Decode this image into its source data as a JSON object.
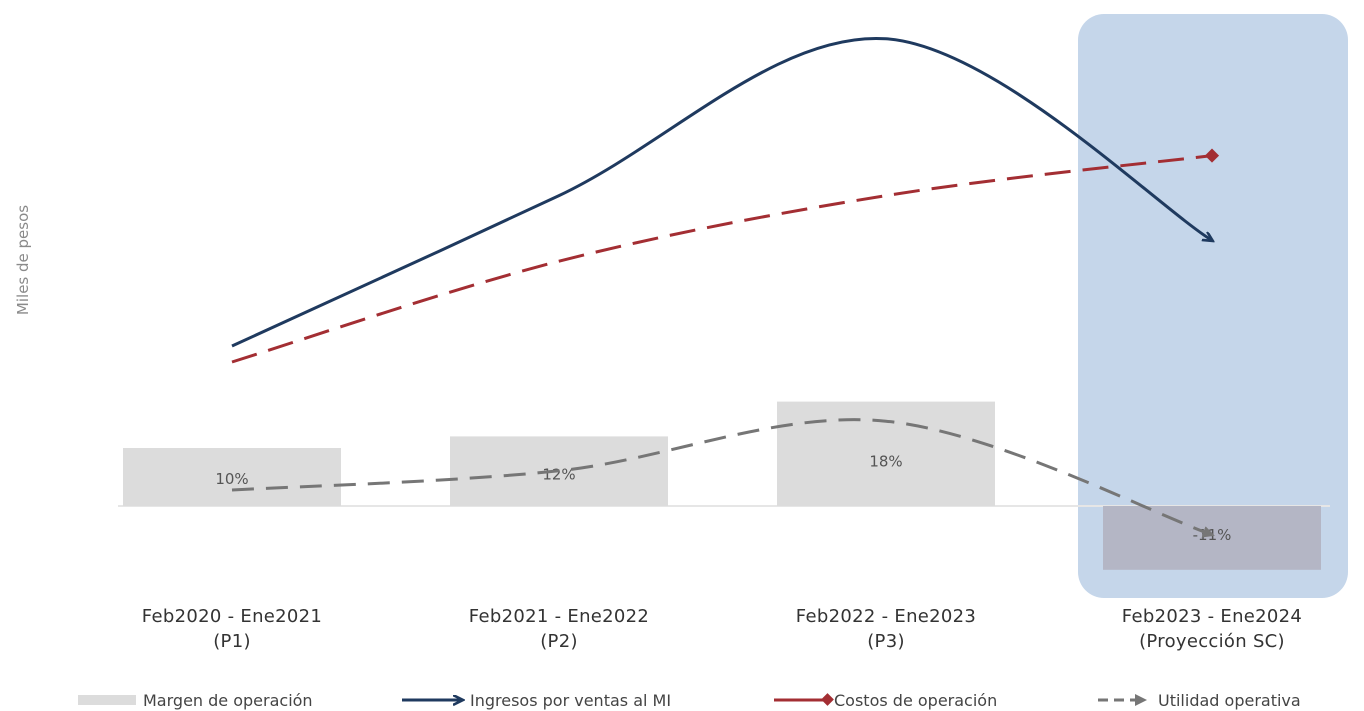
{
  "chart_data": {
    "type": "bar-line",
    "ylabel": "Miles de pesos",
    "categories": [
      [
        "Feb2020 - Ene2021",
        "(P1)"
      ],
      [
        "Feb2021 - Ene2022",
        "(P2)"
      ],
      [
        "Feb2022 - Ene2023",
        "(P3)"
      ],
      [
        "Feb2023 - Ene2024",
        "(Proyección SC)"
      ]
    ],
    "highlight_category": 3,
    "bars": {
      "name": "Margen de operación",
      "values": [
        10,
        12,
        18,
        -11
      ],
      "labels": [
        "10%",
        "12%",
        "18%",
        "-11%"
      ]
    },
    "series": [
      {
        "name": "Ingresos por ventas al MI",
        "values": [
          1.0,
          1.94,
          2.92,
          1.66
        ],
        "style": "solid-arrow"
      },
      {
        "name": "Costos de operación",
        "values": [
          0.9,
          1.53,
          1.94,
          2.19
        ],
        "style": "dashed-diamond"
      },
      {
        "name": "Utilidad operativa",
        "values": [
          0.1,
          0.22,
          0.53,
          -0.18
        ],
        "style": "dashed-arrow"
      }
    ],
    "grid": false,
    "legend": "bottom"
  },
  "colors": {
    "bar": "#dcdcdc",
    "bar_negative": "#b4b6c5",
    "highlight": "#c5d6ea",
    "ingresos": "#1f3a5f",
    "costos": "#a32e33",
    "utilidad": "#767676",
    "baseline": "#e6e6e6"
  }
}
